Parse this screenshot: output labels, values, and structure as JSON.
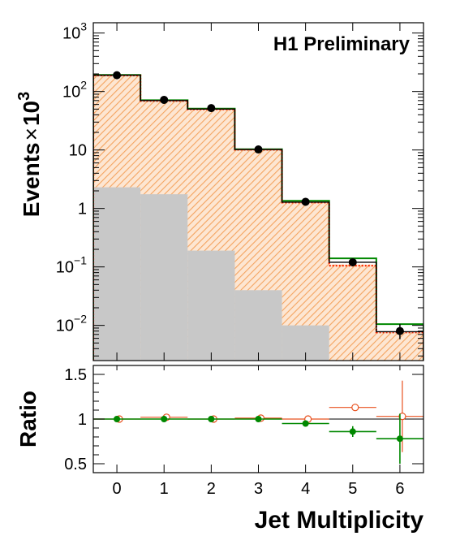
{
  "chart_data": [
    {
      "type": "bar",
      "title": "",
      "annotation": "H1 Preliminary",
      "xlabel": "Jet Multiplicity",
      "ylabel": "Events",
      "ylabel_suffix_parts": [
        "×",
        "10",
        "3"
      ],
      "yscale": "log",
      "xlim": [
        -0.5,
        6.5
      ],
      "ylim": [
        0.0025,
        1500
      ],
      "grid": false,
      "categories": [
        "0",
        "1",
        "2",
        "3",
        "4",
        "5",
        "6"
      ],
      "y_ticks": [
        {
          "value": 0.01,
          "base": "10",
          "exp": "−2"
        },
        {
          "value": 0.1,
          "base": "10",
          "exp": "−1"
        },
        {
          "value": 1,
          "base": "1",
          "exp": ""
        },
        {
          "value": 10,
          "base": "10",
          "exp": ""
        },
        {
          "value": 100,
          "base": "10",
          "exp": "2"
        },
        {
          "value": 1000,
          "base": "10",
          "exp": "3"
        }
      ],
      "series": [
        {
          "role": "hatched-stack",
          "color": "#f4a460",
          "values": [
            185,
            68,
            49,
            10,
            1.25,
            0.11,
            0.0075
          ]
        },
        {
          "role": "grey-band",
          "color": "#c8c8c8",
          "values": [
            2.3,
            1.75,
            0.19,
            0.04,
            0.01,
            0.0025,
            0.0025
          ]
        },
        {
          "role": "black-line",
          "color": "#000000",
          "values": [
            190,
            70,
            50,
            10.2,
            1.28,
            0.12,
            0.0078
          ]
        },
        {
          "role": "red-dotted",
          "color": "#ff2a00",
          "values": [
            188,
            69,
            49.5,
            10.1,
            1.26,
            0.105,
            0.0076
          ]
        },
        {
          "role": "green-line",
          "color": "#008800",
          "values": [
            192,
            71,
            51,
            10.3,
            1.35,
            0.14,
            0.0105
          ]
        },
        {
          "role": "points",
          "color": "#000000",
          "values": [
            190,
            72,
            52,
            10.2,
            1.3,
            0.12,
            0.008
          ],
          "err_hi": [
            null,
            null,
            null,
            null,
            null,
            null,
            0.0105
          ],
          "err_lo": [
            null,
            null,
            null,
            null,
            null,
            null,
            0.0058
          ]
        }
      ]
    },
    {
      "type": "scatter",
      "ylabel": "Ratio",
      "ylim": [
        0.4,
        1.6
      ],
      "y_ticks": [
        {
          "value": 0.5,
          "label": "0.5"
        },
        {
          "value": 1,
          "label": "1"
        },
        {
          "value": 1.5,
          "label": "1.5"
        }
      ],
      "x_ticks": [
        {
          "value": 0,
          "label": "0"
        },
        {
          "value": 1,
          "label": "1"
        },
        {
          "value": 2,
          "label": "2"
        },
        {
          "value": 3,
          "label": "3"
        },
        {
          "value": 4,
          "label": "4"
        },
        {
          "value": 5,
          "label": "5"
        },
        {
          "value": 6,
          "label": "6"
        }
      ],
      "reference_line": 1,
      "series": [
        {
          "role": "open-orange",
          "color": "#e8501e",
          "x": [
            0,
            1,
            2,
            3,
            4,
            5,
            6
          ],
          "values": [
            1.0,
            1.02,
            1.0,
            1.01,
            1.0,
            1.13,
            1.03
          ],
          "err": [
            0.0,
            0.0,
            0.0,
            0.0,
            0.0,
            0.04,
            0.4
          ]
        },
        {
          "role": "filled-green",
          "color": "#008800",
          "x": [
            0,
            1,
            2,
            3,
            4,
            5,
            6
          ],
          "values": [
            1.0,
            1.0,
            1.0,
            1.0,
            0.95,
            0.86,
            0.78
          ],
          "err": [
            0.0,
            0.0,
            0.0,
            0.0,
            0.015,
            0.06,
            0.28
          ]
        }
      ]
    }
  ]
}
